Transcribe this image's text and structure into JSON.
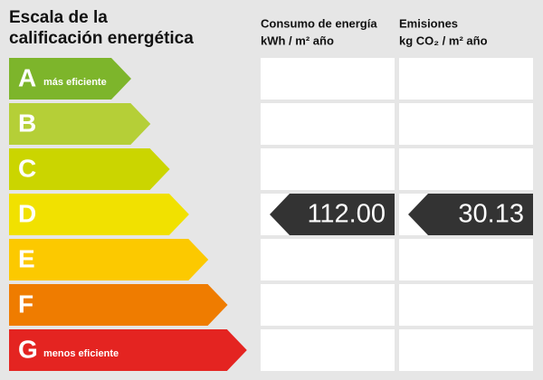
{
  "title": [
    "Escala de la",
    "calificación energética"
  ],
  "columns": [
    {
      "heading": "Consumo de energía",
      "unit": "kWh / m² año",
      "rating": "D",
      "value": "112.00"
    },
    {
      "heading": "Emisiones",
      "unit": "kg CO₂ / m² año",
      "rating": "D",
      "value": "30.13"
    }
  ],
  "ratings": [
    {
      "letter": "A",
      "note": "más eficiente",
      "color": "#7db52b"
    },
    {
      "letter": "B",
      "letter_only": true,
      "color": "#b5cf37"
    },
    {
      "letter": "C",
      "color": "#cbd500"
    },
    {
      "letter": "D",
      "color": "#f1e100"
    },
    {
      "letter": "E",
      "color": "#fcc900"
    },
    {
      "letter": "F",
      "color": "#ef7c00"
    },
    {
      "letter": "G",
      "note": "menos eficiente",
      "color": "#e42421"
    }
  ]
}
